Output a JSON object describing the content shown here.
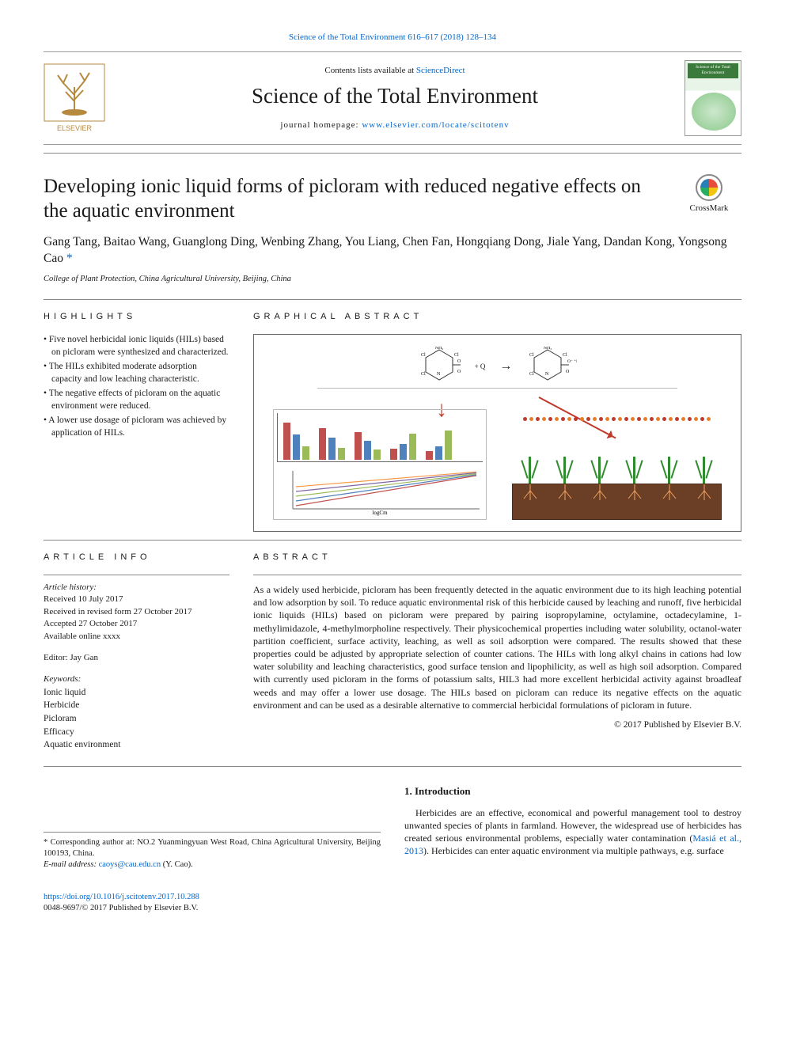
{
  "header": {
    "top_citation": "Science of the Total Environment 616–617 (2018) 128–134",
    "contents_prefix": "Contents lists available at ",
    "contents_link": "ScienceDirect",
    "journal_name": "Science of the Total Environment",
    "homepage_prefix": "journal homepage: ",
    "homepage_link": "www.elsevier.com/locate/scitotenv",
    "publisher_logo_label": "ELSEVIER",
    "cover_label": "Science of the Total Environment"
  },
  "crossmark": "CrossMark",
  "article": {
    "title": "Developing ionic liquid forms of picloram with reduced negative effects on the aquatic environment",
    "authors_line": "Gang Tang, Baitao Wang, Guanglong Ding, Wenbing Zhang, You Liang, Chen Fan, Hongqiang Dong, Jiale Yang, Dandan Kong, Yongsong Cao ",
    "corr_mark": "*",
    "affiliation": "College of Plant Protection, China Agricultural University, Beijing, China"
  },
  "highlights": {
    "heading": "HIGHLIGHTS",
    "items": [
      "Five novel herbicidal ionic liquids (HILs) based on picloram were synthesized and characterized.",
      "The HILs exhibited moderate adsorption capacity and low leaching characteristic.",
      "The negative effects of picloram on the aquatic environment were reduced.",
      "A lower use dosage of picloram was achieved by application of HILs."
    ]
  },
  "graphical_abstract": {
    "heading": "GRAPHICAL ABSTRACT",
    "reaction": {
      "reagent_a_labels": [
        "NH₂",
        "Cl",
        "Cl",
        "Cl",
        "N",
        "OH",
        "O"
      ],
      "plus": "+ Q",
      "arrow": "→",
      "product_labels": [
        "NH₂",
        "Cl",
        "Cl",
        "Cl",
        "N",
        "O⁻ ⁺HQ",
        "O"
      ]
    },
    "left_panel": {
      "bar_chart": {
        "type": "bar",
        "group_count": 5,
        "bars_per_group": 3,
        "colors": [
          "#c0504d",
          "#4f81bd",
          "#9bbb59"
        ],
        "heights_rel": [
          [
            0.82,
            0.55,
            0.3
          ],
          [
            0.7,
            0.48,
            0.26
          ],
          [
            0.6,
            0.42,
            0.22
          ],
          [
            0.25,
            0.35,
            0.58
          ],
          [
            0.2,
            0.3,
            0.65
          ]
        ],
        "y_axis_color": "#333",
        "background": "#ffffff"
      },
      "line_chart": {
        "type": "line",
        "series_count": 5,
        "colors": [
          "#c0504d",
          "#4f81bd",
          "#9bbb59",
          "#8064a2",
          "#f79646"
        ],
        "x_label": "logCm",
        "xlim": [
          -1,
          3
        ],
        "ylim": [
          0,
          1
        ],
        "trend": "monotone_increasing_parallel"
      }
    },
    "right_panel": {
      "type": "infographic",
      "soil_color": "#6b3e26",
      "soil_border": "#4a2a18",
      "plant_color": "#2e8b2e",
      "plant_count": 6,
      "spray_dots": {
        "count": 30,
        "colors": [
          "#c0392b",
          "#e67e22"
        ]
      },
      "root_color": "#f4a460"
    }
  },
  "article_info": {
    "heading": "ARTICLE INFO",
    "history_label": "Article history:",
    "history": [
      "Received 10 July 2017",
      "Received in revised form 27 October 2017",
      "Accepted 27 October 2017",
      "Available online xxxx"
    ],
    "editor_label": "Editor: ",
    "editor": "Jay Gan",
    "keywords_label": "Keywords:",
    "keywords": [
      "Ionic liquid",
      "Herbicide",
      "Picloram",
      "Efficacy",
      "Aquatic environment"
    ]
  },
  "abstract": {
    "heading": "ABSTRACT",
    "text": "As a widely used herbicide, picloram has been frequently detected in the aquatic environment due to its high leaching potential and low adsorption by soil. To reduce aquatic environmental risk of this herbicide caused by leaching and runoff, five herbicidal ionic liquids (HILs) based on picloram were prepared by pairing isopropylamine, octylamine, octadecylamine, 1-methylimidazole, 4-methylmorpholine respectively. Their physicochemical properties including water solubility, octanol-water partition coefficient, surface activity, leaching, as well as soil adsorption were compared. The results showed that these properties could be adjusted by appropriate selection of counter cations. The HILs with long alkyl chains in cations had low water solubility and leaching characteristics, good surface tension and lipophilicity, as well as high soil adsorption. Compared with currently used picloram in the forms of potassium salts, HIL3 had more excellent herbicidal activity against broadleaf weeds and may offer a lower use dosage. The HILs based on picloram can reduce its negative effects on the aquatic environment and can be used as a desirable alternative to commercial herbicidal formulations of picloram in future.",
    "copyright": "© 2017 Published by Elsevier B.V."
  },
  "intro": {
    "heading": "1. Introduction",
    "para": "Herbicides are an effective, economical and powerful management tool to destroy unwanted species of plants in farmland. However, the widespread use of herbicides has created serious environmental problems, especially water contamination (",
    "ref": "Masiá et al., 2013",
    "para_tail": "). Herbicides can enter aquatic environment via multiple pathways, e.g. surface"
  },
  "footnote": {
    "corr_text": "* Corresponding author at: NO.2 Yuanmingyuan West Road, China Agricultural University, Beijing 100193, China.",
    "email_label": "E-mail address: ",
    "email": "caoys@cau.edu.cn",
    "email_tail": " (Y. Cao)."
  },
  "footer": {
    "doi": "https://doi.org/10.1016/j.scitotenv.2017.10.288",
    "issn_line": "0048-9697/© 2017 Published by Elsevier B.V."
  },
  "colors": {
    "link": "#0066cc",
    "rule": "#888888",
    "text": "#1a1a1a"
  }
}
